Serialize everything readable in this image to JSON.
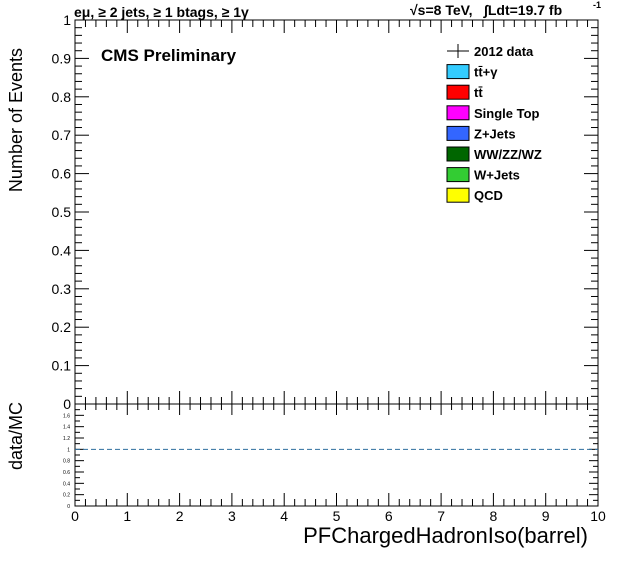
{
  "header": {
    "left": "eμ, ≥ 2 jets, ≥ 1 btags, ≥ 1γ",
    "right_energy": "√s=8 TeV,",
    "right_lumi": "∫Ldt=19.7 fb",
    "right_lumi_exp": "-1"
  },
  "cms_label": "CMS Preliminary",
  "chart_data": [
    {
      "type": "bar",
      "panel": "main",
      "ylabel": "Number of Events",
      "xlim": [
        0,
        10
      ],
      "ylim": [
        0,
        1
      ],
      "y_ticks": [
        "0",
        "0.1",
        "0.2",
        "0.3",
        "0.4",
        "0.5",
        "0.6",
        "0.7",
        "0.8",
        "0.9",
        "1"
      ],
      "series": [],
      "legend": {
        "placement": "top-right",
        "entries": [
          {
            "label": "2012 data",
            "style": "marker",
            "color": "#000000"
          },
          {
            "label": "tt̄+γ",
            "style": "box",
            "color": "#33ccff"
          },
          {
            "label": "tt̄",
            "style": "box",
            "color": "#ff0000"
          },
          {
            "label": "Single Top",
            "style": "box",
            "color": "#ff00ff"
          },
          {
            "label": "Z+Jets",
            "style": "box",
            "color": "#3366ff"
          },
          {
            "label": "WW/ZZ/WZ",
            "style": "box",
            "color": "#006600"
          },
          {
            "label": "W+Jets",
            "style": "box",
            "color": "#33cc33"
          },
          {
            "label": "QCD",
            "style": "box",
            "color": "#ffff00"
          }
        ]
      }
    },
    {
      "type": "line",
      "panel": "ratio",
      "ylabel": "data/MC",
      "xlabel": "PFChargedHadronIso(barrel)",
      "xlim": [
        0,
        10
      ],
      "ylim": [
        0,
        1.8
      ],
      "x_ticks": [
        "0",
        "1",
        "2",
        "3",
        "4",
        "5",
        "6",
        "7",
        "8",
        "9",
        "10"
      ],
      "y_ticks": [
        "0",
        "0.2",
        "0.4",
        "0.6",
        "0.8",
        "1",
        "1.2",
        "1.4",
        "1.6"
      ],
      "reference_line": {
        "y": 1,
        "style": "dashed",
        "color": "#2f6f9f"
      }
    }
  ]
}
